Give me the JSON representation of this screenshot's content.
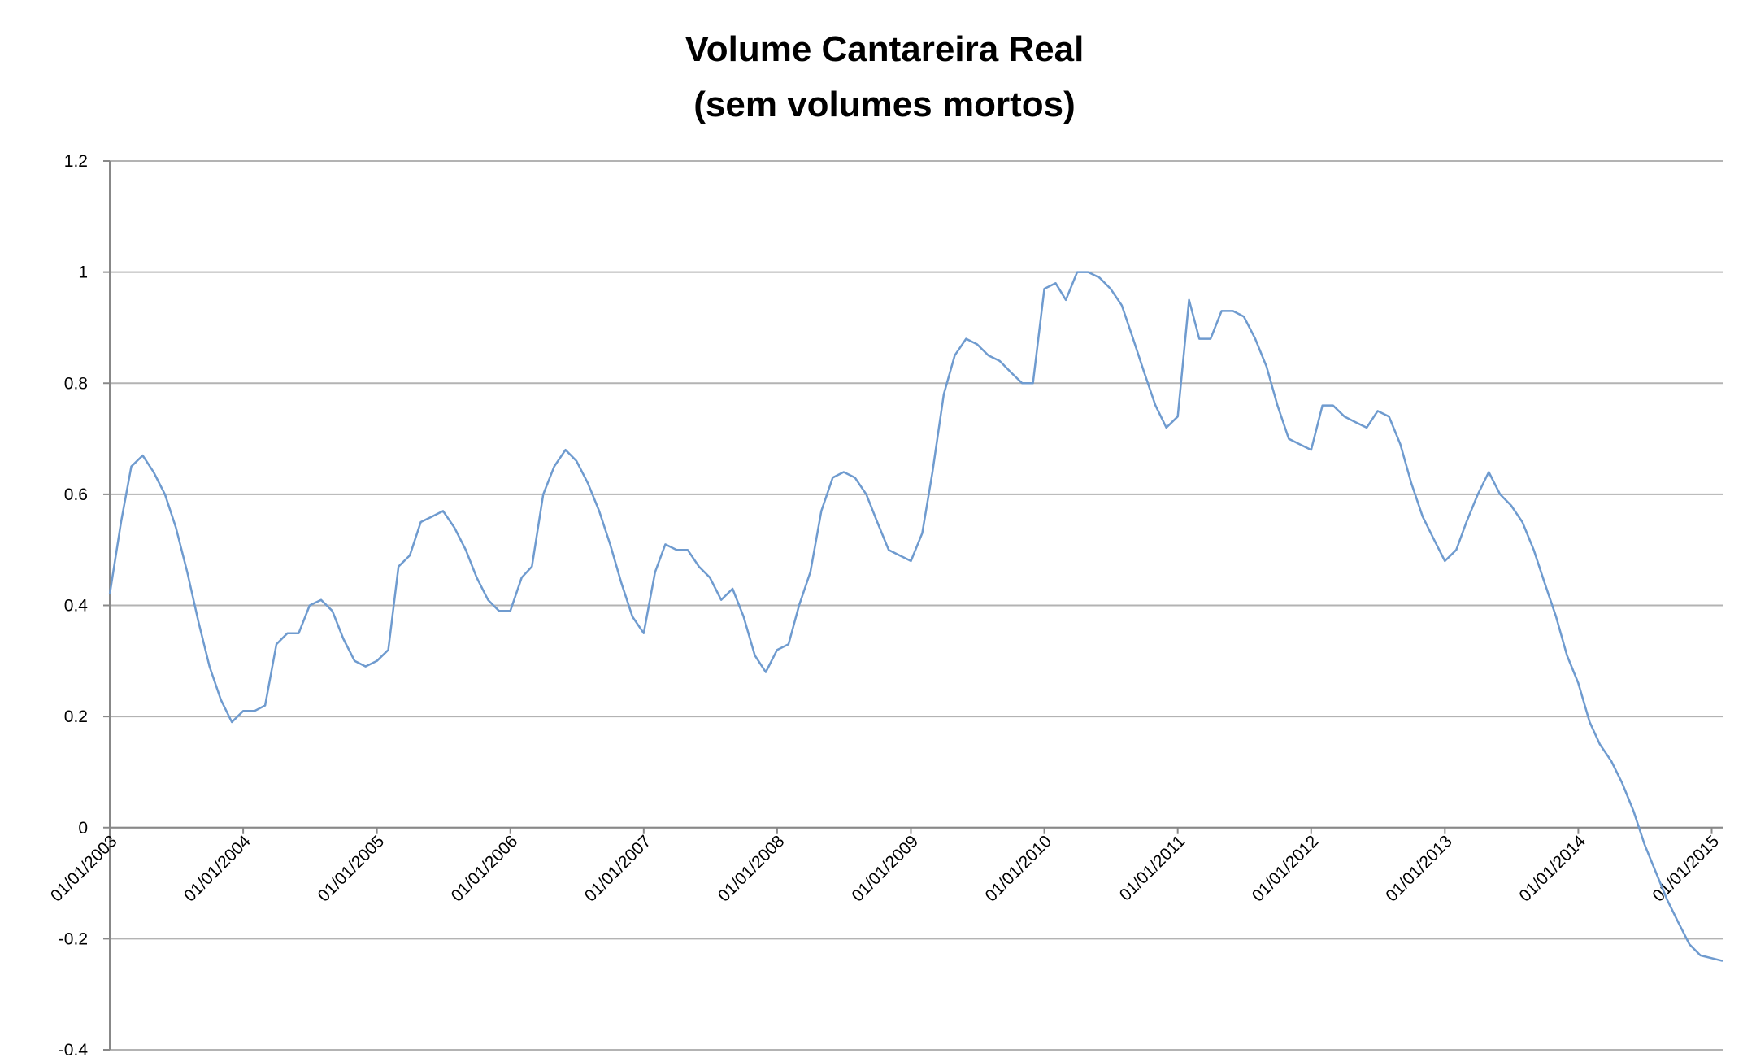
{
  "chart_data": {
    "type": "line",
    "title": "Volume Cantareira Real",
    "subtitle": "(sem volumes mortos)",
    "x": [
      "2003-01-01",
      "2003-02-01",
      "2003-03-01",
      "2003-04-01",
      "2003-05-01",
      "2003-06-01",
      "2003-07-01",
      "2003-08-01",
      "2003-09-01",
      "2003-10-01",
      "2003-11-01",
      "2003-12-01",
      "2004-01-01",
      "2004-02-01",
      "2004-03-01",
      "2004-04-01",
      "2004-05-01",
      "2004-06-01",
      "2004-07-01",
      "2004-08-01",
      "2004-09-01",
      "2004-10-01",
      "2004-11-01",
      "2004-12-01",
      "2005-01-01",
      "2005-02-01",
      "2005-03-01",
      "2005-04-01",
      "2005-05-01",
      "2005-06-01",
      "2005-07-01",
      "2005-08-01",
      "2005-09-01",
      "2005-10-01",
      "2005-11-01",
      "2005-12-01",
      "2006-01-01",
      "2006-02-01",
      "2006-03-01",
      "2006-04-01",
      "2006-05-01",
      "2006-06-01",
      "2006-07-01",
      "2006-08-01",
      "2006-09-01",
      "2006-10-01",
      "2006-11-01",
      "2006-12-01",
      "2007-01-01",
      "2007-02-01",
      "2007-03-01",
      "2007-04-01",
      "2007-05-01",
      "2007-06-01",
      "2007-07-01",
      "2007-08-01",
      "2007-09-01",
      "2007-10-01",
      "2007-11-01",
      "2007-12-01",
      "2008-01-01",
      "2008-02-01",
      "2008-03-01",
      "2008-04-01",
      "2008-05-01",
      "2008-06-01",
      "2008-07-01",
      "2008-08-01",
      "2008-09-01",
      "2008-10-01",
      "2008-11-01",
      "2008-12-01",
      "2009-01-01",
      "2009-02-01",
      "2009-03-01",
      "2009-04-01",
      "2009-05-01",
      "2009-06-01",
      "2009-07-01",
      "2009-08-01",
      "2009-09-01",
      "2009-10-01",
      "2009-11-01",
      "2009-12-01",
      "2010-01-01",
      "2010-02-01",
      "2010-03-01",
      "2010-04-01",
      "2010-05-01",
      "2010-06-01",
      "2010-07-01",
      "2010-08-01",
      "2010-09-01",
      "2010-10-01",
      "2010-11-01",
      "2010-12-01",
      "2011-01-01",
      "2011-02-01",
      "2011-03-01",
      "2011-04-01",
      "2011-05-01",
      "2011-06-01",
      "2011-07-01",
      "2011-08-01",
      "2011-09-01",
      "2011-10-01",
      "2011-11-01",
      "2011-12-01",
      "2012-01-01",
      "2012-02-01",
      "2012-03-01",
      "2012-04-01",
      "2012-05-01",
      "2012-06-01",
      "2012-07-01",
      "2012-08-01",
      "2012-09-01",
      "2012-10-01",
      "2012-11-01",
      "2012-12-01",
      "2013-01-01",
      "2013-02-01",
      "2013-03-01",
      "2013-04-01",
      "2013-05-01",
      "2013-06-01",
      "2013-07-01",
      "2013-08-01",
      "2013-09-01",
      "2013-10-01",
      "2013-11-01",
      "2013-12-01",
      "2014-01-01",
      "2014-02-01",
      "2014-03-01",
      "2014-04-01",
      "2014-05-01",
      "2014-06-01",
      "2014-07-01",
      "2014-08-01",
      "2014-09-01",
      "2014-10-01",
      "2014-11-01",
      "2014-12-01",
      "2015-01-31"
    ],
    "series": [
      {
        "color": "#6f9bcf",
        "values": [
          0.42,
          0.55,
          0.65,
          0.67,
          0.64,
          0.6,
          0.54,
          0.46,
          0.37,
          0.29,
          0.23,
          0.19,
          0.21,
          0.21,
          0.22,
          0.33,
          0.35,
          0.35,
          0.4,
          0.41,
          0.39,
          0.34,
          0.3,
          0.29,
          0.3,
          0.32,
          0.47,
          0.49,
          0.55,
          0.56,
          0.57,
          0.54,
          0.5,
          0.45,
          0.41,
          0.39,
          0.39,
          0.45,
          0.47,
          0.6,
          0.65,
          0.68,
          0.66,
          0.62,
          0.57,
          0.51,
          0.44,
          0.38,
          0.35,
          0.46,
          0.51,
          0.5,
          0.5,
          0.47,
          0.45,
          0.41,
          0.43,
          0.38,
          0.31,
          0.28,
          0.32,
          0.33,
          0.4,
          0.46,
          0.57,
          0.63,
          0.64,
          0.63,
          0.6,
          0.55,
          0.5,
          0.49,
          0.48,
          0.53,
          0.64,
          0.78,
          0.85,
          0.88,
          0.87,
          0.85,
          0.84,
          0.82,
          0.8,
          0.8,
          0.97,
          0.98,
          0.95,
          1.0,
          1.0,
          0.99,
          0.97,
          0.94,
          0.88,
          0.82,
          0.76,
          0.72,
          0.74,
          0.95,
          0.88,
          0.88,
          0.93,
          0.93,
          0.92,
          0.88,
          0.83,
          0.76,
          0.7,
          0.69,
          0.68,
          0.76,
          0.76,
          0.74,
          0.73,
          0.72,
          0.75,
          0.74,
          0.69,
          0.62,
          0.56,
          0.52,
          0.48,
          0.5,
          0.55,
          0.6,
          0.64,
          0.6,
          0.58,
          0.55,
          0.5,
          0.44,
          0.38,
          0.31,
          0.26,
          0.19,
          0.15,
          0.12,
          0.08,
          0.03,
          -0.03,
          -0.08,
          -0.13,
          -0.17,
          -0.21,
          -0.23,
          -0.24
        ]
      }
    ],
    "xlim": [
      "2003-01-01",
      "2015-01-31"
    ],
    "xticks": [
      {
        "value": "2003-01-01",
        "label": "01/01/2003"
      },
      {
        "value": "2004-01-01",
        "label": "01/01/2004"
      },
      {
        "value": "2005-01-01",
        "label": "01/01/2005"
      },
      {
        "value": "2006-01-01",
        "label": "01/01/2006"
      },
      {
        "value": "2007-01-01",
        "label": "01/01/2007"
      },
      {
        "value": "2008-01-01",
        "label": "01/01/2008"
      },
      {
        "value": "2009-01-01",
        "label": "01/01/2009"
      },
      {
        "value": "2010-01-01",
        "label": "01/01/2010"
      },
      {
        "value": "2011-01-01",
        "label": "01/01/2011"
      },
      {
        "value": "2012-01-01",
        "label": "01/01/2012"
      },
      {
        "value": "2013-01-01",
        "label": "01/01/2013"
      },
      {
        "value": "2014-01-01",
        "label": "01/01/2014"
      },
      {
        "value": "2015-01-01",
        "label": "01/01/2015"
      }
    ],
    "ylim": [
      -0.4,
      1.2
    ],
    "yticks": [
      -0.4,
      -0.2,
      0,
      0.2,
      0.4,
      0.6,
      0.8,
      1,
      1.2
    ],
    "grid": true
  }
}
